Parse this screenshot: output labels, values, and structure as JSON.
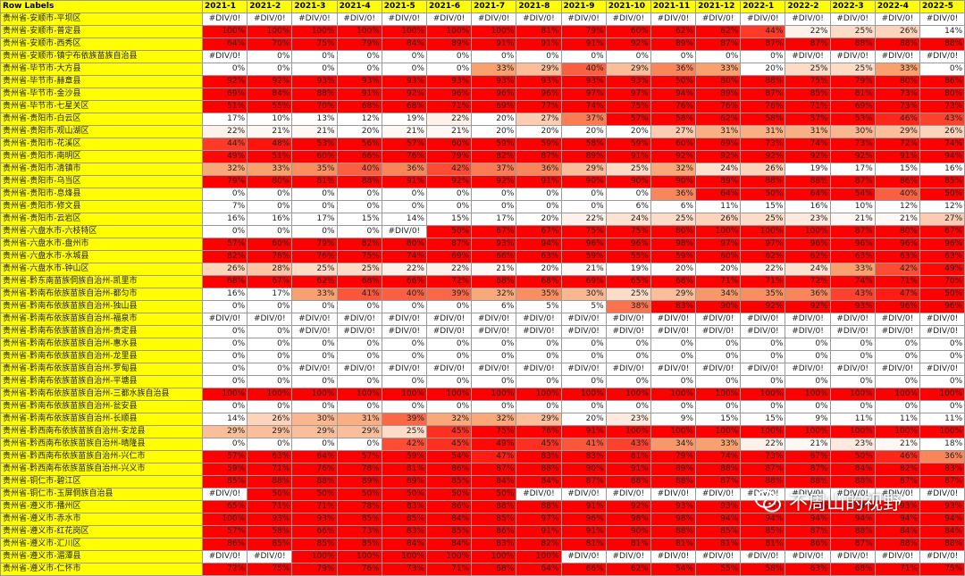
{
  "header": [
    "Row Labels",
    "2021-1",
    "2021-2",
    "2021-3",
    "2021-4",
    "2021-5",
    "2021-6",
    "2021-7",
    "2021-8",
    "2021-9",
    "2021-10",
    "2021-11",
    "2021-12",
    "2022-1",
    "2022-2",
    "2022-3",
    "2022-4",
    "2022-5"
  ],
  "rows": [
    {
      "label": "贵州省-安顺市-平坝区",
      "values": [
        "#DIV/0!",
        "#DIV/0!",
        "#DIV/0!",
        "#DIV/0!",
        "#DIV/0!",
        "#DIV/0!",
        "#DIV/0!",
        "#DIV/0!",
        "#DIV/0!",
        "#DIV/0!",
        "#DIV/0!",
        "#DIV/0!",
        "#DIV/0!",
        "#DIV/0!",
        "#DIV/0!",
        "#DIV/0!",
        "#DIV/0!"
      ]
    },
    {
      "label": "贵州省-安顺市-普定县",
      "values": [
        "100%",
        "100%",
        "100%",
        "100%",
        "100%",
        "100%",
        "100%",
        "81%",
        "79%",
        "60%",
        "62%",
        "62%",
        "44%",
        "22%",
        "25%",
        "26%",
        "14%"
      ]
    },
    {
      "label": "贵州省-安顺市-西秀区",
      "values": [
        "64%",
        "70%",
        "75%",
        "79%",
        "84%",
        "89%",
        "91%",
        "91%",
        "91%",
        "92%",
        "89%",
        "87%",
        "87%",
        "87%",
        "88%",
        "88%",
        "88%"
      ]
    },
    {
      "label": "贵州省-安顺市-镇宁布依族苗族自治县",
      "values": [
        "#DIV/0!",
        "0%",
        "0%",
        "0%",
        "0%",
        "0%",
        "0%",
        "0%",
        "0%",
        "0%",
        "0%",
        "0%",
        "0%",
        "#DIV/0!",
        "#DIV/0!",
        "#DIV/0!",
        "#DIV/0!"
      ]
    },
    {
      "label": "贵州省-毕节市-大方县",
      "values": [
        "0%",
        "0%",
        "0%",
        "0%",
        "0%",
        "0%",
        "33%",
        "29%",
        "40%",
        "29%",
        "36%",
        "33%",
        "20%",
        "25%",
        "25%",
        "33%",
        "0%"
      ]
    },
    {
      "label": "贵州省-毕节市-赫章县",
      "values": [
        "92%",
        "92%",
        "93%",
        "93%",
        "93%",
        "93%",
        "93%",
        "93%",
        "93%",
        "93%",
        "50%",
        "80%",
        "88%",
        "75%",
        "79%",
        "80%",
        "86%"
      ]
    },
    {
      "label": "贵州省-毕节市-金沙县",
      "values": [
        "69%",
        "84%",
        "88%",
        "91%",
        "92%",
        "96%",
        "96%",
        "96%",
        "97%",
        "97%",
        "94%",
        "89%",
        "87%",
        "85%",
        "81%",
        "73%",
        "80%"
      ]
    },
    {
      "label": "贵州省-毕节市-七星关区",
      "values": [
        "51%",
        "55%",
        "70%",
        "68%",
        "68%",
        "71%",
        "69%",
        "77%",
        "74%",
        "75%",
        "76%",
        "76%",
        "76%",
        "71%",
        "69%",
        "73%",
        "73%"
      ]
    },
    {
      "label": "贵州省-贵阳市-白云区",
      "values": [
        "17%",
        "10%",
        "13%",
        "12%",
        "19%",
        "22%",
        "20%",
        "27%",
        "37%",
        "57%",
        "58%",
        "62%",
        "58%",
        "57%",
        "53%",
        "46%",
        "43%"
      ]
    },
    {
      "label": "贵州省-贵阳市-观山湖区",
      "values": [
        "22%",
        "21%",
        "21%",
        "20%",
        "21%",
        "21%",
        "20%",
        "20%",
        "20%",
        "20%",
        "27%",
        "31%",
        "31%",
        "31%",
        "30%",
        "29%",
        "26%"
      ]
    },
    {
      "label": "贵州省-贵阳市-花溪区",
      "values": [
        "44%",
        "48%",
        "53%",
        "56%",
        "57%",
        "60%",
        "59%",
        "59%",
        "58%",
        "59%",
        "60%",
        "69%",
        "73%",
        "74%",
        "73%",
        "72%",
        "74%"
      ]
    },
    {
      "label": "贵州省-贵阳市-南明区",
      "values": [
        "49%",
        "51%",
        "60%",
        "66%",
        "76%",
        "79%",
        "82%",
        "87%",
        "89%",
        "91%",
        "92%",
        "92%",
        "92%",
        "92%",
        "92%",
        "91%",
        "94%"
      ]
    },
    {
      "label": "贵州省-贵阳市-清镇市",
      "values": [
        "32%",
        "33%",
        "35%",
        "40%",
        "36%",
        "42%",
        "37%",
        "36%",
        "29%",
        "25%",
        "32%",
        "24%",
        "26%",
        "19%",
        "17%",
        "15%",
        "16%"
      ]
    },
    {
      "label": "贵州省-贵阳市-乌当区",
      "values": [
        "79%",
        "80%",
        "81%",
        "88%",
        "91%",
        "92%",
        "92%",
        "91%",
        "90%",
        "90%",
        "90%",
        "89%",
        "88%",
        "88%",
        "87%",
        "86%",
        "85%"
      ]
    },
    {
      "label": "贵州省-贵阳市-息烽县",
      "values": [
        "0%",
        "0%",
        "0%",
        "0%",
        "0%",
        "0%",
        "0%",
        "0%",
        "0%",
        "0%",
        "36%",
        "64%",
        "50%",
        "64%",
        "54%",
        "40%",
        "50%"
      ]
    },
    {
      "label": "贵州省-贵阳市-修文县",
      "values": [
        "7%",
        "0%",
        "0%",
        "0%",
        "0%",
        "0%",
        "0%",
        "0%",
        "0%",
        "6%",
        "6%",
        "11%",
        "15%",
        "16%",
        "10%",
        "12%",
        "12%"
      ]
    },
    {
      "label": "贵州省-贵阳市-云岩区",
      "values": [
        "16%",
        "16%",
        "17%",
        "15%",
        "14%",
        "15%",
        "17%",
        "20%",
        "22%",
        "24%",
        "25%",
        "26%",
        "25%",
        "23%",
        "21%",
        "21%",
        "27%"
      ]
    },
    {
      "label": "贵州省-六盘水市-六枝特区",
      "values": [
        "0%",
        "0%",
        "0%",
        "0%",
        "#DIV/0!",
        "50%",
        "67%",
        "67%",
        "75%",
        "75%",
        "80%",
        "100%",
        "100%",
        "100%",
        "87%",
        "80%",
        "67%"
      ]
    },
    {
      "label": "贵州省-六盘水市-盘州市",
      "values": [
        "57%",
        "60%",
        "79%",
        "82%",
        "80%",
        "87%",
        "93%",
        "94%",
        "96%",
        "96%",
        "98%",
        "97%",
        "97%",
        "96%",
        "96%",
        "96%",
        "96%"
      ]
    },
    {
      "label": "贵州省-六盘水市-水城县",
      "values": [
        "82%",
        "78%",
        "76%",
        "75%",
        "74%",
        "69%",
        "66%",
        "63%",
        "59%",
        "55%",
        "59%",
        "60%",
        "62%",
        "62%",
        "63%",
        "63%",
        "63%"
      ]
    },
    {
      "label": "贵州省-六盘水市-钟山区",
      "values": [
        "26%",
        "28%",
        "25%",
        "25%",
        "22%",
        "22%",
        "21%",
        "20%",
        "21%",
        "19%",
        "20%",
        "20%",
        "22%",
        "24%",
        "33%",
        "42%",
        "49%"
      ]
    },
    {
      "label": "贵州省-黔东南苗族侗族自治州-凯里市",
      "values": [
        "68%",
        "67%",
        "62%",
        "68%",
        "66%",
        "72%",
        "68%",
        "68%",
        "69%",
        "65%",
        "68%",
        "71%",
        "71%",
        "72%",
        "74%",
        "71%",
        "70%"
      ]
    },
    {
      "label": "贵州省-黔南布依族苗族自治州-都匀市",
      "values": [
        "16%",
        "17%",
        "33%",
        "41%",
        "40%",
        "39%",
        "32%",
        "35%",
        "30%",
        "25%",
        "29%",
        "34%",
        "35%",
        "36%",
        "43%",
        "47%",
        "50%"
      ]
    },
    {
      "label": "贵州省-黔南布依族苗族自治州-独山县",
      "values": [
        "0%",
        "0%",
        "0%",
        "0%",
        "0%",
        "0%",
        "6%",
        "5%",
        "5%",
        "38%",
        "83%",
        "90%",
        "92%",
        "92%",
        "93%",
        "96%",
        "96%"
      ]
    },
    {
      "label": "贵州省-黔南布依族苗族自治州-福泉市",
      "values": [
        "#DIV/0!",
        "#DIV/0!",
        "#DIV/0!",
        "#DIV/0!",
        "#DIV/0!",
        "#DIV/0!",
        "#DIV/0!",
        "#DIV/0!",
        "#DIV/0!",
        "#DIV/0!",
        "#DIV/0!",
        "#DIV/0!",
        "#DIV/0!",
        "#DIV/0!",
        "#DIV/0!",
        "#DIV/0!",
        "#DIV/0!"
      ]
    },
    {
      "label": "贵州省-黔南布依族苗族自治州-贵定县",
      "values": [
        "0%",
        "0%",
        "#DIV/0!",
        "#DIV/0!",
        "#DIV/0!",
        "#DIV/0!",
        "#DIV/0!",
        "#DIV/0!",
        "#DIV/0!",
        "#DIV/0!",
        "#DIV/0!",
        "#DIV/0!",
        "#DIV/0!",
        "#DIV/0!",
        "#DIV/0!",
        "#DIV/0!",
        "#DIV/0!"
      ]
    },
    {
      "label": "贵州省-黔南布依族苗族自治州-惠水县",
      "values": [
        "0%",
        "0%",
        "0%",
        "0%",
        "0%",
        "0%",
        "0%",
        "0%",
        "0%",
        "0%",
        "0%",
        "0%",
        "0%",
        "0%",
        "0%",
        "0%",
        "0%"
      ]
    },
    {
      "label": "贵州省-黔南布依族苗族自治州-龙里县",
      "values": [
        "0%",
        "0%",
        "0%",
        "0%",
        "0%",
        "0%",
        "0%",
        "0%",
        "0%",
        "0%",
        "0%",
        "0%",
        "0%",
        "0%",
        "0%",
        "0%",
        "0%"
      ]
    },
    {
      "label": "贵州省-黔南布依族苗族自治州-罗甸县",
      "values": [
        "0%",
        "0%",
        "#DIV/0!",
        "#DIV/0!",
        "#DIV/0!",
        "#DIV/0!",
        "#DIV/0!",
        "#DIV/0!",
        "#DIV/0!",
        "#DIV/0!",
        "#DIV/0!",
        "#DIV/0!",
        "#DIV/0!",
        "#DIV/0!",
        "#DIV/0!",
        "#DIV/0!",
        "#DIV/0!"
      ]
    },
    {
      "label": "贵州省-黔南布依族苗族自治州-平塘县",
      "values": [
        "0%",
        "0%",
        "0%",
        "0%",
        "0%",
        "0%",
        "0%",
        "0%",
        "0%",
        "0%",
        "0%",
        "0%",
        "0%",
        "0%",
        "0%",
        "0%",
        "0%"
      ]
    },
    {
      "label": "贵州省-黔南布依族苗族自治州-三都水族自治县",
      "values": [
        "100%",
        "100%",
        "100%",
        "100%",
        "100%",
        "100%",
        "100%",
        "100%",
        "100%",
        "100%",
        "100%",
        "100%",
        "100%",
        "100%",
        "100%",
        "100%",
        "100%"
      ]
    },
    {
      "label": "贵州省-黔南布依族苗族自治州-瓮安县",
      "values": [
        "0%",
        "0%",
        "0%",
        "0%",
        "0%",
        "0%",
        "0%",
        "0%",
        "0%",
        "0%",
        "0%",
        "0%",
        "0%",
        "0%",
        "0%",
        "0%",
        "0%"
      ]
    },
    {
      "label": "贵州省-黔南布依族苗族自治州-长顺县",
      "values": [
        "14%",
        "26%",
        "30%",
        "31%",
        "39%",
        "32%",
        "32%",
        "29%",
        "20%",
        "23%",
        "9%",
        "15%",
        "15%",
        "9%",
        "11%",
        "11%",
        "11%"
      ]
    },
    {
      "label": "贵州省-黔西南布依族苗族自治州-安龙县",
      "values": [
        "29%",
        "29%",
        "29%",
        "29%",
        "25%",
        "45%",
        "75%",
        "76%",
        "91%",
        "100%",
        "100%",
        "100%",
        "100%",
        "100%",
        "100%",
        "100%",
        "100%"
      ]
    },
    {
      "label": "贵州省-黔西南布依族苗族自治州-晴隆县",
      "values": [
        "0%",
        "0%",
        "0%",
        "0%",
        "42%",
        "45%",
        "49%",
        "45%",
        "41%",
        "43%",
        "34%",
        "33%",
        "22%",
        "21%",
        "23%",
        "21%",
        "18%"
      ]
    },
    {
      "label": "贵州省-黔西南布依族苗族自治州-兴仁市",
      "values": [
        "57%",
        "63%",
        "64%",
        "57%",
        "59%",
        "54%",
        "47%",
        "83%",
        "83%",
        "81%",
        "79%",
        "74%",
        "73%",
        "67%",
        "50%",
        "46%",
        "36%"
      ]
    },
    {
      "label": "贵州省-黔西南布依族苗族自治州-兴义市",
      "values": [
        "59%",
        "71%",
        "76%",
        "78%",
        "81%",
        "86%",
        "87%",
        "88%",
        "90%",
        "91%",
        "89%",
        "88%",
        "87%",
        "87%",
        "84%",
        "82%",
        "83%"
      ]
    },
    {
      "label": "贵州省-铜仁市-碧江区",
      "values": [
        "85%",
        "88%",
        "88%",
        "89%",
        "89%",
        "85%",
        "84%",
        "84%",
        "87%",
        "88%",
        "88%",
        "87%",
        "88%",
        "88%",
        "88%",
        "87%",
        "87%"
      ]
    },
    {
      "label": "贵州省-铜仁市-玉屏侗族自治县",
      "values": [
        "#DIV/0!",
        "50%",
        "50%",
        "50%",
        "50%",
        "50%",
        "50%",
        "#DIV/0!",
        "#DIV/0!",
        "#DIV/0!",
        "#DIV/0!",
        "#DIV/0!",
        "#DIV/0!",
        "#DIV/0!",
        "#DIV/0!",
        "#DIV/0!",
        "#DIV/0!"
      ]
    },
    {
      "label": "贵州省-遵义市-播州区",
      "values": [
        "65%",
        "71%",
        "71%",
        "78%",
        "83%",
        "86%",
        "88%",
        "88%",
        "91%",
        "92%",
        "93%",
        "93%",
        "93%",
        "93%",
        "93%",
        "93%",
        "93%"
      ]
    },
    {
      "label": "贵州省-遵义市-赤水市",
      "values": [
        "100%",
        "93%",
        "93%",
        "85%",
        "85%",
        "84%",
        "85%",
        "97%",
        "96%",
        "98%",
        "98%",
        "94%",
        "94%",
        "94%",
        "94%",
        "94%",
        "94%"
      ]
    },
    {
      "label": "贵州省-遵义市-红花岗区",
      "values": [
        "57%",
        "58%",
        "66%",
        "73%",
        "83%",
        "85%",
        "86%",
        "91%",
        "91%",
        "90%",
        "88%",
        "85%",
        "85%",
        "87%",
        "88%",
        "84%",
        "84%"
      ]
    },
    {
      "label": "贵州省-遵义市-汇川区",
      "values": [
        "86%",
        "85%",
        "85%",
        "85%",
        "84%",
        "84%",
        "83%",
        "82%",
        "81%",
        "81%",
        "81%",
        "81%",
        "81%",
        "86%",
        "87%",
        "88%",
        "88%"
      ]
    },
    {
      "label": "贵州省-遵义市-湄潭县",
      "values": [
        "#DIV/0!",
        "#DIV/0!",
        "100%",
        "100%",
        "100%",
        "100%",
        "100%",
        "100%",
        "#DIV/0!",
        "#DIV/0!",
        "#DIV/0!",
        "#DIV/0!",
        "#DIV/0!",
        "#DIV/0!",
        "#DIV/0!",
        "#DIV/0!",
        "#DIV/0!"
      ]
    },
    {
      "label": "贵州省-遵义市-仁怀市",
      "values": [
        "72%",
        "75%",
        "79%",
        "76%",
        "73%",
        "71%",
        "68%",
        "64%",
        "66%",
        "62%",
        "54%",
        "55%",
        "58%",
        "63%",
        "68%",
        "71%",
        "75%"
      ]
    }
  ],
  "colors": {
    "label_bg": "#ffff00",
    "high": "#ff0000",
    "mid": "#f8a16e",
    "low": "#ffffff",
    "text": "#222222"
  },
  "watermark": {
    "text": "不周山的视野",
    "icon": "wechat-icon"
  }
}
